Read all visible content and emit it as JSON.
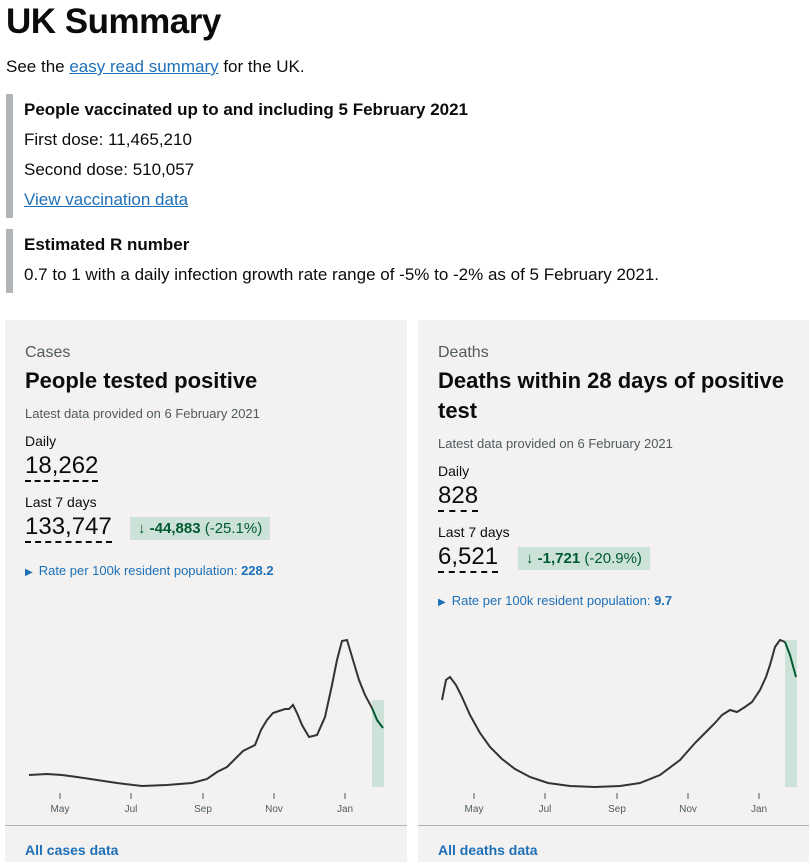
{
  "page_title": "UK Summary",
  "intro": {
    "before": "See the ",
    "link": "easy read summary",
    "after": " for the UK."
  },
  "vaccination": {
    "heading": "People vaccinated up to and including 5 February 2021",
    "first_dose": "First dose: 11,465,210",
    "second_dose": "Second dose: 510,057",
    "link": "View vaccination data"
  },
  "r_number": {
    "heading": "Estimated R number",
    "text": "0.7 to 1 with a daily infection growth rate range of -5% to -2% as of 5 February 2021."
  },
  "cards": [
    {
      "caption": "Cases",
      "title": "People tested positive",
      "latest": "Latest data provided on 6 February 2021",
      "daily_label": "Daily",
      "daily_value": "18,262",
      "week_label": "Last 7 days",
      "week_value": "133,747",
      "change_arrow": "↓",
      "change_value": "-44,883",
      "change_pct": "(-25.1%)",
      "rate_label": "Rate per 100k resident population:",
      "rate_value": "228.2",
      "footer_link": "All cases data",
      "chart_months": [
        "May",
        "Jul",
        "Sep",
        "Nov",
        "Jan"
      ]
    },
    {
      "caption": "Deaths",
      "title": "Deaths within 28 days of positive test",
      "latest": "Latest data provided on 6 February 2021",
      "daily_label": "Daily",
      "daily_value": "828",
      "week_label": "Last 7 days",
      "week_value": "6,521",
      "change_arrow": "↓",
      "change_value": "-1,721",
      "change_pct": "(-20.9%)",
      "rate_label": "Rate per 100k resident population:",
      "rate_value": "9.7",
      "footer_link": "All deaths data",
      "chart_months": [
        "May",
        "Jul",
        "Sep",
        "Nov",
        "Jan"
      ]
    }
  ],
  "colors": {
    "link": "#1d70b8",
    "change_bg": "#cce2d8",
    "change_text": "#005a30",
    "highlight": "#cce2d8",
    "panel": "#f3f2f1"
  }
}
